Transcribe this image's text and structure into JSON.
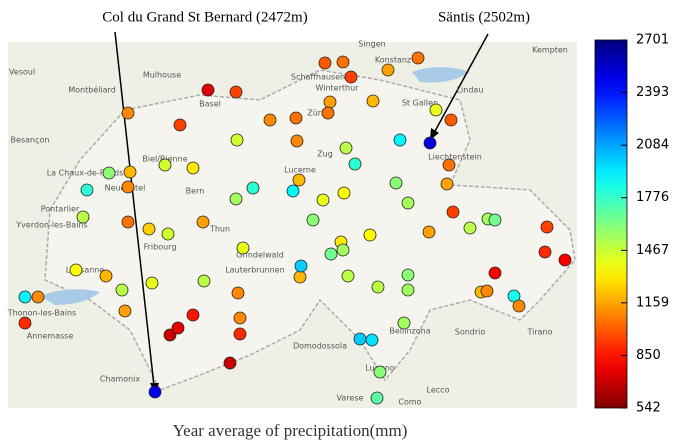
{
  "annotations": [
    "Col du Grand  St Bernard  (2472m)",
    "Säntis (2502m)"
  ],
  "caption": "Year average of precipitation(mm)",
  "colorbar": {
    "lim": [
      542,
      2701
    ],
    "ticks": [
      542,
      850,
      1159,
      1467,
      1776,
      2084,
      2393,
      2701
    ]
  },
  "places": [
    "Mulhouse",
    "Vesoul",
    "Montbéliard",
    "Basel",
    "Schaffhausen",
    "Singen",
    "Konstanz",
    "Kempten",
    "Winterthur",
    "Zürich",
    "Lindau",
    "St Gallen",
    "Liechtenstein",
    "Besançon",
    "La Chaux-de-Fonds",
    "Biel/Bienne",
    "Zug",
    "Pontarlier",
    "Neuchâtel",
    "Bern",
    "Lucerne",
    "Yverdon-les-Bains",
    "Fribourg",
    "Thun",
    "Grindelwald",
    "Lausanne",
    "Lauterbrunnen",
    "Thonon-les-Bains",
    "Annemasse",
    "Domodossola",
    "Bellinzona",
    "Lugano",
    "Sondrio",
    "Tirano",
    "Chamonix",
    "Varese",
    "Como",
    "Lecco"
  ],
  "stations": [
    1100,
    750,
    950,
    950,
    1100,
    1050,
    1000,
    1050,
    950,
    1150,
    1050,
    1150,
    1050,
    1200,
    1400,
    1000,
    1450,
    1100,
    1500,
    1800,
    1900,
    2502,
    1050,
    1150,
    1600,
    1800,
    1200,
    1100,
    1450,
    1300,
    1800,
    1550,
    1200,
    1900,
    1400,
    1350,
    1600,
    1550,
    950,
    1500,
    1550,
    1650,
    950,
    900,
    800,
    1500,
    1050,
    1250,
    1450,
    1150,
    1600,
    1300,
    1650,
    1550,
    1350,
    1150,
    1400,
    1350,
    1200,
    1900,
    1100,
    1500,
    1400,
    1500,
    1100,
    1200,
    2000,
    1500,
    1500,
    1600,
    1550,
    800,
    1200,
    1100,
    1850,
    1100,
    900,
    1150,
    850,
    700,
    750,
    1100,
    900,
    1550,
    2000,
    1950,
    700,
    2472,
    1600,
    1700
  ]
}
